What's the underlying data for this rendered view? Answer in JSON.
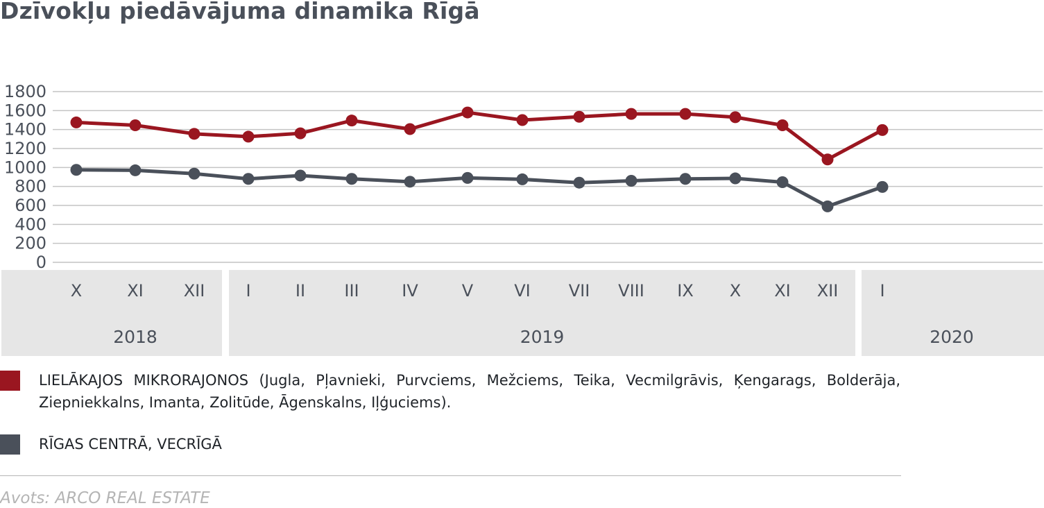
{
  "title": "Dzīvokļu piedāvājuma dinamika Rīgā",
  "chart_data": {
    "type": "line",
    "title": "Dzīvokļu piedāvājuma dinamika Rīgā",
    "xlabel": "",
    "ylabel": "",
    "ylim": [
      0,
      1800
    ],
    "yticks": [
      0,
      200,
      400,
      600,
      800,
      1000,
      1200,
      1400,
      1600,
      1800
    ],
    "grid": true,
    "categories": [
      "X",
      "XI",
      "XII",
      "I",
      "II",
      "III",
      "IV",
      "V",
      "VI",
      "VII",
      "VIII",
      "IX",
      "X",
      "XI",
      "XII",
      "I"
    ],
    "year_groups": [
      {
        "label": "2018",
        "months": 3
      },
      {
        "label": "2019",
        "months": 12
      },
      {
        "label": "2020",
        "months": 1
      }
    ],
    "series": [
      {
        "name": "LIELĀKAJOS MIKRORAJONOS (Jugla, Pļavnieki, Purvciems, Mežciems, Teika, Vecmilgrāvis, Ķengarags, Bolderāja, Ziepniekkalns, Imanta, Zolitūde, Āgenskalns, Iļģuciems).",
        "color": "#9a1620",
        "values": [
          1475,
          1445,
          1355,
          1325,
          1360,
          1495,
          1405,
          1580,
          1500,
          1535,
          1565,
          1565,
          1530,
          1445,
          1085,
          1395
        ]
      },
      {
        "name": "RĪGAS CENTRĀ, VECRĪGĀ",
        "color": "#4a505a",
        "values": [
          975,
          970,
          935,
          880,
          915,
          880,
          850,
          890,
          875,
          840,
          860,
          880,
          885,
          845,
          590,
          795
        ]
      }
    ],
    "legend_position": "bottom"
  },
  "legend": {
    "red_label": "LIELĀKAJOS MIKRORAJONOS (Jugla, Pļavnieki, Purvciems, Mežciems, Teika, Vecmilgrāvis, Ķengarags, Bolderāja, Ziepniekkalns, Imanta, Zolitūde, Āgenskalns, Iļģuciems).",
    "gray_label": "RĪGAS CENTRĀ, VECRĪGĀ"
  },
  "source": "Avots: ARCO REAL ESTATE",
  "colors": {
    "accent_red": "#9a1620",
    "accent_gray": "#4a505a",
    "year_band": "#e6e6e6",
    "grid": "#c4c4c4"
  }
}
